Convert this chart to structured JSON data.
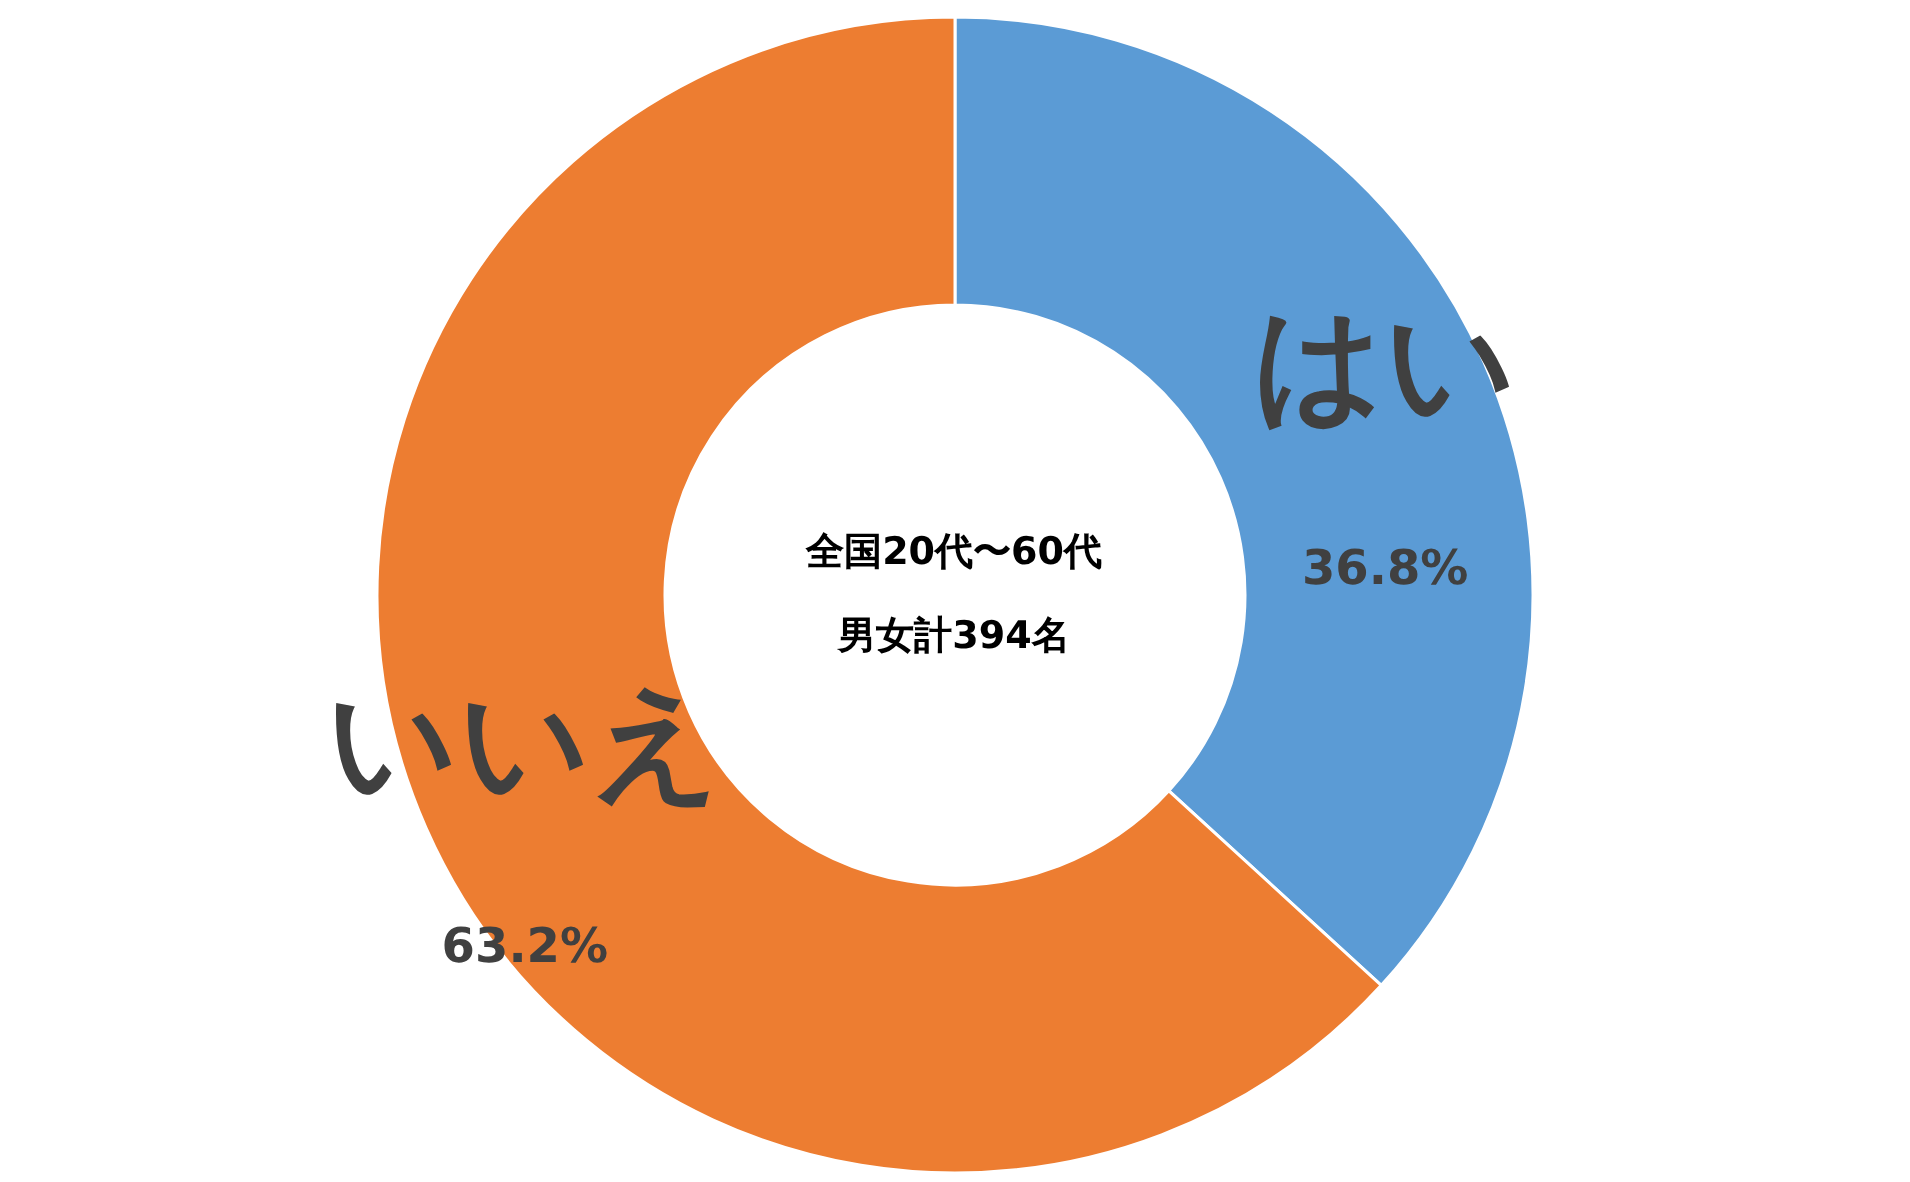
{
  "chart_data": {
    "type": "donut",
    "categories": [
      "はい",
      "いいえ"
    ],
    "values": [
      36.8,
      63.2
    ],
    "colors": [
      "#5b9bd5",
      "#ed7d31"
    ],
    "value_labels": [
      "36.8%",
      "63.2%"
    ],
    "annotations": [
      "全国20代〜60代",
      "男女計394名"
    ],
    "legend": false
  }
}
